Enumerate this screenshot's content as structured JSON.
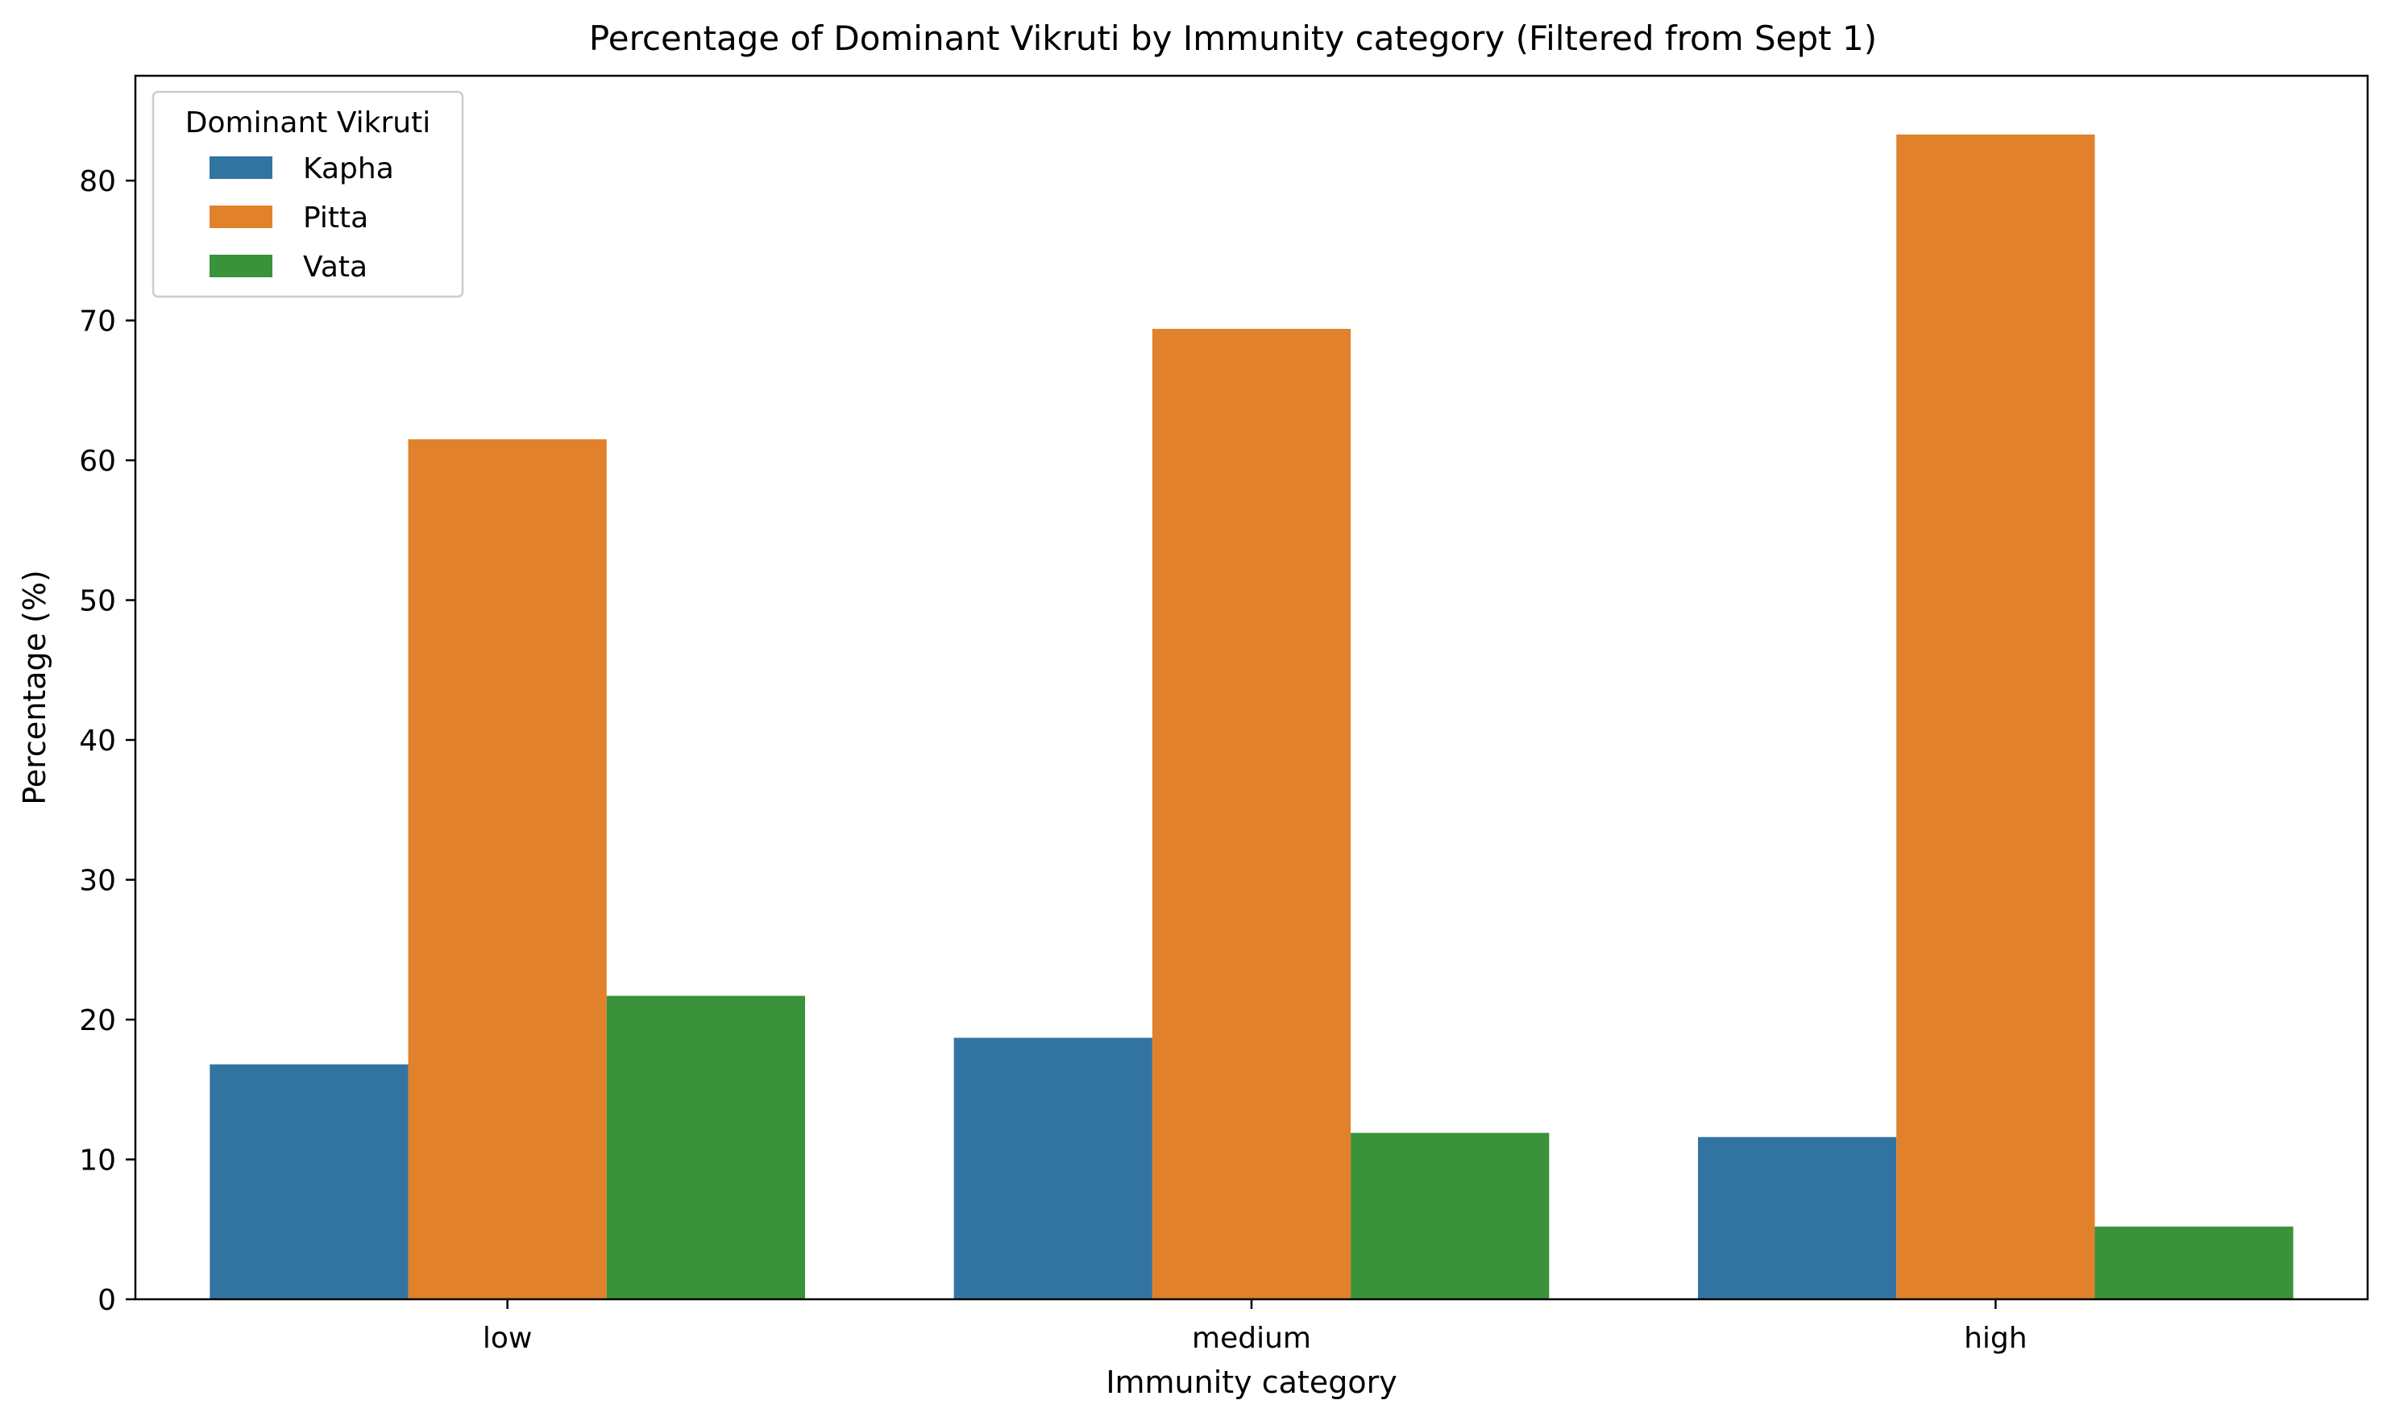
{
  "chart_data": {
    "type": "bar",
    "title": "Percentage of Dominant Vikruti by Immunity category (Filtered from Sept 1)",
    "xlabel": "Immunity category",
    "ylabel": "Percentage (%)",
    "categories": [
      "low",
      "medium",
      "high"
    ],
    "ylim": [
      0,
      87.5
    ],
    "yticks": [
      0,
      10,
      20,
      30,
      40,
      50,
      60,
      70,
      80
    ],
    "grid": false,
    "legend": {
      "title": "Dominant Vikruti",
      "placement": "top-left"
    },
    "series": [
      {
        "name": "Kapha",
        "color": "#3274a1",
        "values": [
          16.8,
          18.7,
          11.6
        ]
      },
      {
        "name": "Pitta",
        "color": "#e1812c",
        "values": [
          61.5,
          69.4,
          83.3
        ]
      },
      {
        "name": "Vata",
        "color": "#3a923a",
        "values": [
          21.7,
          11.9,
          5.2
        ]
      }
    ]
  }
}
